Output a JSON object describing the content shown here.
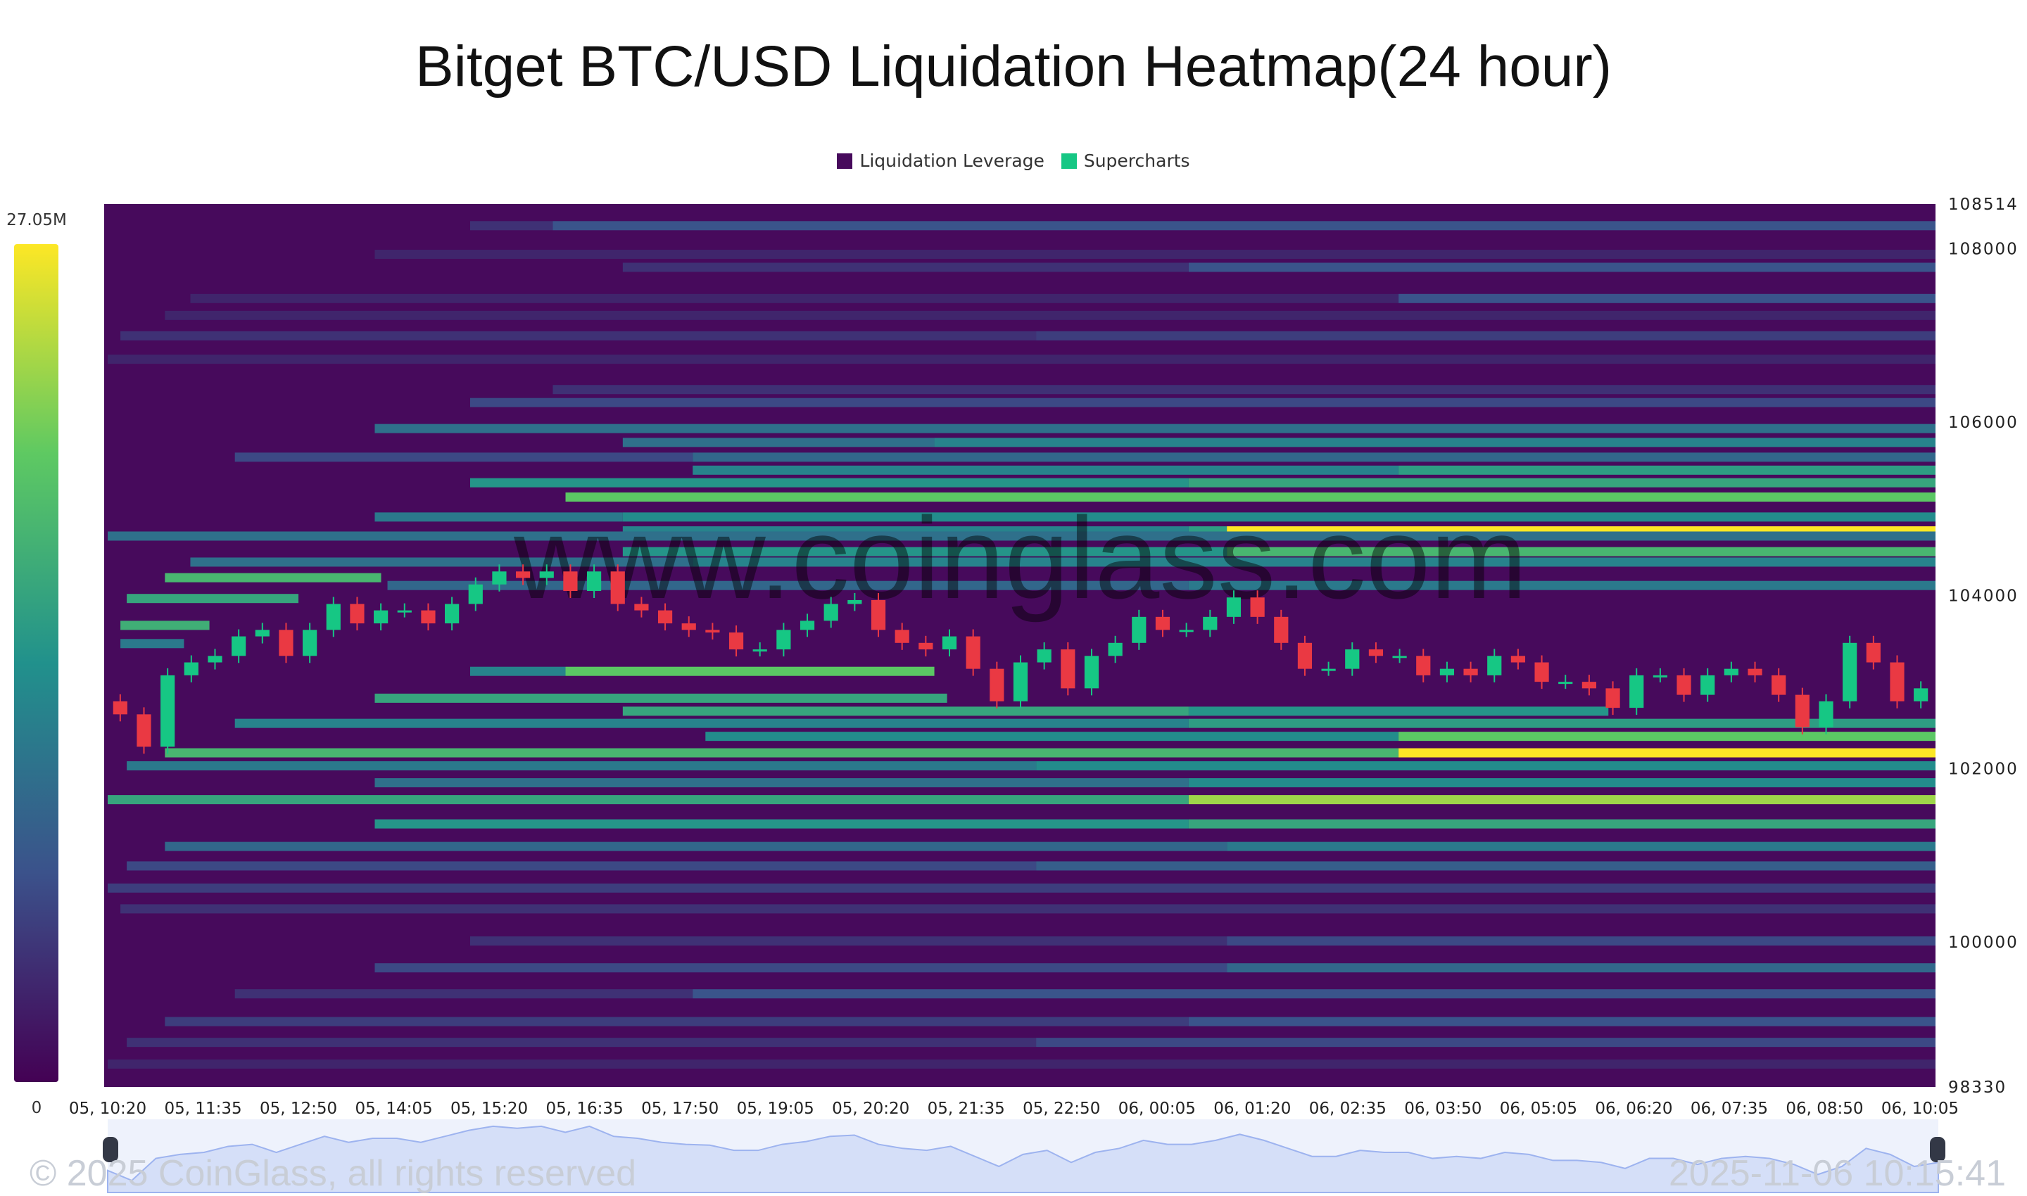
{
  "title": "Bitget BTC/USD Liquidation Heatmap(24 hour)",
  "legend": [
    {
      "label": "Liquidation Leverage",
      "color": "#470a5c"
    },
    {
      "label": "Supercharts",
      "color": "#16c784"
    }
  ],
  "watermark": "www.coinglass.com",
  "footer": {
    "copyright": "© 2025 CoinGlass, all rights reserved",
    "timestamp": "2025-11-06 10:15:41"
  },
  "chart_data": {
    "type": "heatmap",
    "title": "Bitget BTC/USD Liquidation Heatmap(24 hour)",
    "colorbar": {
      "max_label": "27.05M",
      "min_label": "0",
      "max": 27.05,
      "min": 0,
      "colormap": "viridis"
    },
    "ylim": [
      98330,
      108514
    ],
    "y_ticks": [
      "108514",
      "108000",
      "106000",
      "104000",
      "102000",
      "100000",
      "98330"
    ],
    "x_ticks": [
      "05, 10:20",
      "05, 11:35",
      "05, 12:50",
      "05, 14:05",
      "05, 15:20",
      "05, 16:35",
      "05, 17:50",
      "05, 19:05",
      "05, 20:20",
      "05, 21:35",
      "05, 22:50",
      "06, 00:05",
      "06, 01:20",
      "06, 02:35",
      "06, 03:50",
      "06, 05:05",
      "06, 06:20",
      "06, 07:35",
      "06, 08:50",
      "06, 10:05"
    ],
    "bands": [
      {
        "price": 108260,
        "segments": [
          [
            "05, 15:05",
            4
          ],
          [
            "05, 16:10",
            7
          ]
        ]
      },
      {
        "price": 107930,
        "segments": [
          [
            "05, 13:50",
            3
          ]
        ]
      },
      {
        "price": 107780,
        "segments": [
          [
            "05, 17:05",
            4
          ],
          [
            "06, 00:30",
            7
          ]
        ]
      },
      {
        "price": 107420,
        "segments": [
          [
            "05, 11:25",
            3
          ],
          [
            "06, 03:15",
            7
          ]
        ]
      },
      {
        "price": 107225,
        "segments": [
          [
            "05, 11:05",
            3
          ]
        ]
      },
      {
        "price": 106990,
        "segments": [
          [
            "05, 10:30",
            4
          ],
          [
            "05, 22:30",
            5
          ]
        ]
      },
      {
        "price": 106720,
        "segments": [
          [
            "05, 10:20",
            3
          ]
        ]
      },
      {
        "price": 106370,
        "segments": [
          [
            "05, 16:10",
            4
          ]
        ]
      },
      {
        "price": 106220,
        "segments": [
          [
            "05, 15:05",
            6
          ]
        ]
      },
      {
        "price": 105920,
        "segments": [
          [
            "05, 13:50",
            10
          ]
        ]
      },
      {
        "price": 105760,
        "segments": [
          [
            "05, 17:05",
            10
          ],
          [
            "05, 21:10",
            12
          ]
        ]
      },
      {
        "price": 105590,
        "segments": [
          [
            "05, 12:00",
            6
          ],
          [
            "05, 18:00",
            9
          ]
        ]
      },
      {
        "price": 105440,
        "segments": [
          [
            "05, 18:00",
            12
          ],
          [
            "06, 03:15",
            15
          ]
        ]
      },
      {
        "price": 105295,
        "segments": [
          [
            "05, 15:05",
            14
          ],
          [
            "06, 00:30",
            16
          ]
        ]
      },
      {
        "price": 105130,
        "segments": [
          [
            "05, 16:20",
            20
          ]
        ]
      },
      {
        "price": 104900,
        "segments": [
          [
            "05, 13:50",
            11
          ],
          [
            "05, 17:05",
            13
          ]
        ]
      },
      {
        "price": 104740,
        "segments": [
          [
            "05, 17:05",
            12
          ],
          [
            "06, 00:30",
            15
          ],
          [
            "06, 01:00",
            27
          ]
        ]
      },
      {
        "price": 104680,
        "segments": [
          [
            "05, 10:20",
            10
          ]
        ]
      },
      {
        "price": 104500,
        "segments": [
          [
            "05, 17:05",
            14
          ],
          [
            "06, 01:00",
            18
          ]
        ]
      },
      {
        "price": 104380,
        "segments": [
          [
            "05, 11:25",
            10
          ],
          [
            "05, 18:00",
            12
          ]
        ]
      },
      {
        "price": 104200,
        "segments": [
          [
            "05, 11:05",
            18
          ]
        ],
        "to": "05, 13:55"
      },
      {
        "price": 104110,
        "segments": [
          [
            "05, 14:00",
            9
          ],
          [
            "06, 00:30",
            11
          ]
        ]
      },
      {
        "price": 103960,
        "segments": [
          [
            "05, 10:35",
            16
          ]
        ],
        "to": "05, 12:50"
      },
      {
        "price": 103650,
        "segments": [
          [
            "05, 10:30",
            17
          ]
        ],
        "to": "05, 11:40"
      },
      {
        "price": 103440,
        "segments": [
          [
            "05, 10:30",
            11
          ]
        ],
        "to": "05, 11:20"
      },
      {
        "price": 103120,
        "segments": [
          [
            "05, 15:05",
            12
          ],
          [
            "05, 16:20",
            20
          ]
        ],
        "to": "05, 21:10"
      },
      {
        "price": 102810,
        "segments": [
          [
            "05, 13:50",
            16
          ]
        ],
        "to": "05, 21:20"
      },
      {
        "price": 102660,
        "segments": [
          [
            "05, 17:05",
            16
          ],
          [
            "06, 00:30",
            14
          ]
        ],
        "to": "06, 06:00"
      },
      {
        "price": 102520,
        "segments": [
          [
            "05, 12:00",
            12
          ],
          [
            "06, 00:30",
            15
          ]
        ]
      },
      {
        "price": 102370,
        "segments": [
          [
            "05, 18:10",
            13
          ],
          [
            "06, 03:15",
            20
          ]
        ]
      },
      {
        "price": 102180,
        "segments": [
          [
            "05, 11:05",
            18
          ],
          [
            "06, 03:15",
            27
          ]
        ]
      },
      {
        "price": 102030,
        "segments": [
          [
            "05, 10:35",
            11
          ],
          [
            "05, 22:30",
            13
          ]
        ]
      },
      {
        "price": 101835,
        "segments": [
          [
            "05, 13:50",
            10
          ],
          [
            "06, 00:30",
            13
          ]
        ]
      },
      {
        "price": 101640,
        "segments": [
          [
            "05, 10:20",
            16
          ],
          [
            "06, 00:30",
            23
          ]
        ]
      },
      {
        "price": 101360,
        "segments": [
          [
            "05, 13:50",
            14
          ],
          [
            "06, 00:30",
            16
          ]
        ]
      },
      {
        "price": 101100,
        "segments": [
          [
            "05, 11:05",
            9
          ],
          [
            "06, 01:00",
            11
          ]
        ]
      },
      {
        "price": 100875,
        "segments": [
          [
            "05, 10:35",
            6
          ],
          [
            "05, 22:30",
            8
          ]
        ]
      },
      {
        "price": 100620,
        "segments": [
          [
            "05, 10:20",
            5
          ]
        ]
      },
      {
        "price": 100380,
        "segments": [
          [
            "05, 10:30",
            4
          ]
        ]
      },
      {
        "price": 100010,
        "segments": [
          [
            "05, 15:05",
            4
          ],
          [
            "06, 01:00",
            6
          ]
        ]
      },
      {
        "price": 99700,
        "segments": [
          [
            "05, 13:50",
            6
          ],
          [
            "06, 01:00",
            9
          ]
        ]
      },
      {
        "price": 99400,
        "segments": [
          [
            "05, 12:00",
            4
          ],
          [
            "05, 18:00",
            7
          ]
        ]
      },
      {
        "price": 99080,
        "segments": [
          [
            "05, 11:05",
            5
          ],
          [
            "06, 00:30",
            7
          ]
        ]
      },
      {
        "price": 98840,
        "segments": [
          [
            "05, 10:35",
            4
          ],
          [
            "05, 22:30",
            6
          ]
        ]
      },
      {
        "price": 98590,
        "segments": [
          [
            "05, 10:20",
            3
          ]
        ]
      }
    ],
    "candles_close": [
      102628,
      102254,
      103078,
      103227,
      103302,
      103527,
      103602,
      103302,
      103602,
      103901,
      103677,
      103827,
      103827,
      103677,
      103901,
      104126,
      104276,
      104201,
      104276,
      104051,
      104276,
      103901,
      103827,
      103677,
      103602,
      103572,
      103377,
      103377,
      103602,
      103707,
      103901,
      103946,
      103602,
      103452,
      103377,
      103527,
      103153,
      102778,
      103227,
      103377,
      102928,
      103302,
      103452,
      103752,
      103602,
      103602,
      103752,
      103976,
      103752,
      103452,
      103153,
      103153,
      103377,
      103302,
      103302,
      103078,
      103153,
      103078,
      103302,
      103227,
      103003,
      103003,
      102928,
      102703,
      103078,
      103078,
      102853,
      103078,
      103153,
      103078,
      102853,
      102479,
      102778,
      103452,
      103227,
      102778,
      102928
    ],
    "candle_colors": {
      "up": "#16c784",
      "down": "#ea3943"
    }
  }
}
